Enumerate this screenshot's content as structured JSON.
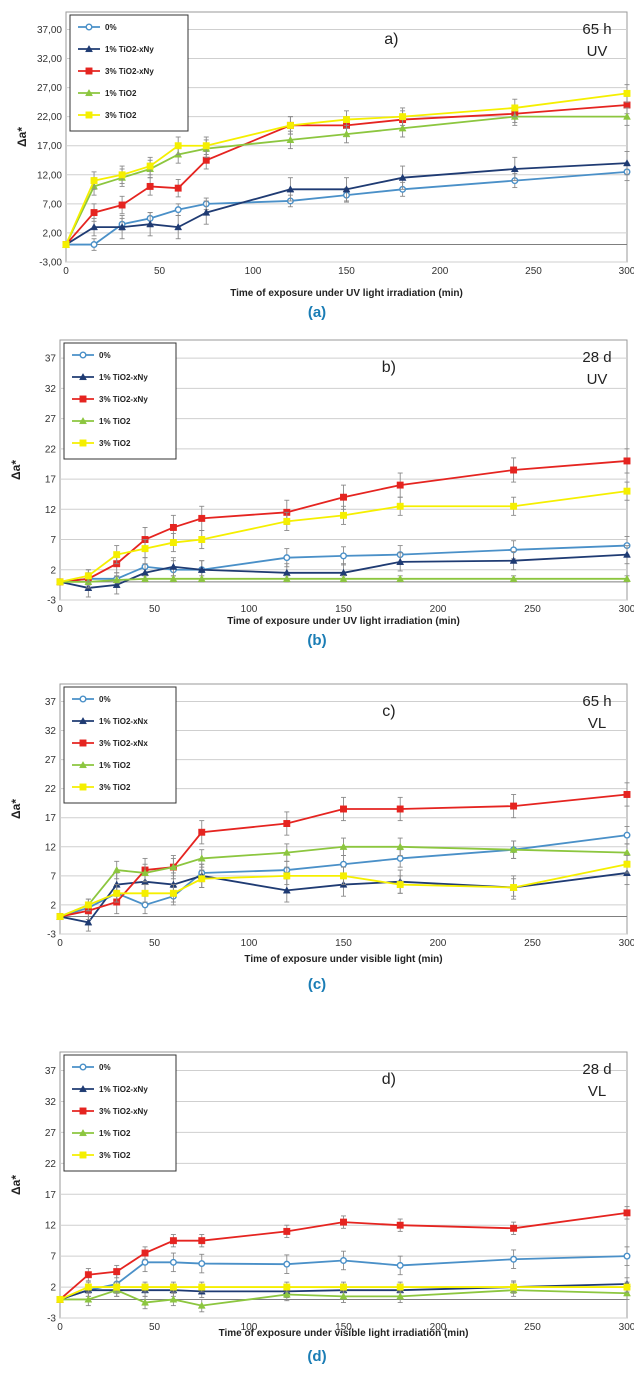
{
  "chart_data": [
    {
      "type": "line",
      "panel_label": "a)",
      "corner_line1": "65 h",
      "corner_line2": "UV",
      "caption": "(a)",
      "xlabel": "Time of exposure under UV light irradiation (min)",
      "ylabel": "Δa*",
      "xlim": [
        0,
        300
      ],
      "ylim": [
        -3,
        40
      ],
      "yticks": [
        "-3,00",
        "2,00",
        "7,00",
        "12,00",
        "17,00",
        "22,00",
        "27,00",
        "32,00",
        "37,00"
      ],
      "ytick_values": [
        -3,
        2,
        7,
        12,
        17,
        22,
        27,
        32,
        37
      ],
      "xticks": [
        "0",
        "50",
        "100",
        "150",
        "200",
        "250",
        "300"
      ],
      "grid": true,
      "legend_position": "top-left",
      "series": [
        {
          "name": "0%",
          "color": "#4a90c8",
          "marker": "circle-open",
          "x": [
            0,
            15,
            30,
            45,
            60,
            75,
            120,
            150,
            180,
            240,
            300
          ],
          "y": [
            0,
            0,
            3.5,
            4.5,
            6,
            7,
            7.5,
            8.5,
            9.5,
            11,
            12.5
          ],
          "err": [
            0,
            1,
            1,
            1,
            1,
            1,
            1,
            1.2,
            1.2,
            1.2,
            1.5
          ]
        },
        {
          "name": "1% TiO2-xNy",
          "color": "#1f3b73",
          "marker": "triangle",
          "x": [
            0,
            15,
            30,
            45,
            60,
            75,
            120,
            150,
            180,
            240,
            300
          ],
          "y": [
            0,
            3,
            3,
            3.5,
            3,
            5.5,
            9.5,
            9.5,
            11.5,
            13,
            14
          ],
          "err": [
            0,
            1.5,
            2,
            2,
            2,
            2,
            2,
            2,
            2,
            2,
            2
          ]
        },
        {
          "name": "3% TiO2-xNy",
          "color": "#e52420",
          "marker": "square",
          "x": [
            0,
            15,
            30,
            45,
            60,
            75,
            120,
            150,
            180,
            240,
            300
          ],
          "y": [
            0,
            5.5,
            6.8,
            10,
            9.7,
            14.5,
            20.5,
            20.5,
            21.5,
            22.5,
            24
          ],
          "err": [
            0,
            1.5,
            1.5,
            1.5,
            1.5,
            1.5,
            1.5,
            1.5,
            1.5,
            1.5,
            1.5
          ]
        },
        {
          "name": "1% TiO2",
          "color": "#8cc63f",
          "marker": "triangle",
          "x": [
            0,
            15,
            30,
            45,
            60,
            75,
            120,
            150,
            180,
            240,
            300
          ],
          "y": [
            0,
            10,
            11.5,
            13,
            15.5,
            16.5,
            18,
            19,
            20,
            22,
            22
          ],
          "err": [
            0,
            1.5,
            1.5,
            1.5,
            1.5,
            1.5,
            1.5,
            1.5,
            1.5,
            1.5,
            1.5
          ]
        },
        {
          "name": "3% TiO2",
          "color": "#f5ef00",
          "marker": "square",
          "x": [
            0,
            15,
            30,
            45,
            60,
            75,
            120,
            150,
            180,
            240,
            300
          ],
          "y": [
            0,
            11,
            12,
            13.5,
            17,
            17,
            20.5,
            21.5,
            22,
            23.5,
            26
          ],
          "err": [
            0,
            1.5,
            1.5,
            1.5,
            1.5,
            1.5,
            1.5,
            1.5,
            1.5,
            1.5,
            1.5
          ]
        }
      ]
    },
    {
      "type": "line",
      "panel_label": "b)",
      "corner_line1": "28 d",
      "corner_line2": "UV",
      "caption": "(b)",
      "xlabel": "Time of exposure under UV light irradiation (min)",
      "ylabel": "Δa*",
      "xlim": [
        0,
        300
      ],
      "ylim": [
        -3,
        40
      ],
      "yticks": [
        "-3",
        "2",
        "7",
        "12",
        "17",
        "22",
        "27",
        "32",
        "37"
      ],
      "ytick_values": [
        -3,
        2,
        7,
        12,
        17,
        22,
        27,
        32,
        37
      ],
      "xticks": [
        "0",
        "50",
        "100",
        "150",
        "200",
        "250",
        "300"
      ],
      "grid": true,
      "legend_position": "top-left",
      "series": [
        {
          "name": "0%",
          "color": "#4a90c8",
          "marker": "circle-open",
          "x": [
            0,
            15,
            30,
            45,
            60,
            75,
            120,
            150,
            180,
            240,
            300
          ],
          "y": [
            0,
            0.5,
            0.5,
            2.5,
            2,
            2,
            4,
            4.3,
            4.5,
            5.3,
            6
          ],
          "err": [
            0,
            1,
            1,
            1.5,
            1.5,
            1.5,
            1.5,
            1.5,
            1.5,
            1.5,
            1.5
          ]
        },
        {
          "name": "1% TiO2-xNy",
          "color": "#1f3b73",
          "marker": "triangle",
          "x": [
            0,
            15,
            30,
            45,
            60,
            75,
            120,
            150,
            180,
            240,
            300
          ],
          "y": [
            0,
            -1,
            -0.5,
            1.5,
            2.5,
            2,
            1.5,
            1.5,
            3.3,
            3.5,
            4.5
          ],
          "err": [
            0,
            1.5,
            1.5,
            1.5,
            1.5,
            1.5,
            1.5,
            1.5,
            1.5,
            1.5,
            1.5
          ]
        },
        {
          "name": "3% TiO2-xNy",
          "color": "#e52420",
          "marker": "square",
          "x": [
            0,
            15,
            30,
            45,
            60,
            75,
            120,
            150,
            180,
            240,
            300
          ],
          "y": [
            0,
            0.5,
            3,
            7,
            9,
            10.5,
            11.5,
            14,
            16,
            18.5,
            20
          ],
          "err": [
            0,
            1.5,
            1.5,
            2,
            2,
            2,
            2,
            2,
            2,
            2,
            2
          ]
        },
        {
          "name": "1% TiO2",
          "color": "#8cc63f",
          "marker": "triangle",
          "x": [
            0,
            15,
            30,
            45,
            60,
            75,
            120,
            150,
            180,
            240,
            300
          ],
          "y": [
            0,
            0,
            0.3,
            0.5,
            0.5,
            0.5,
            0.5,
            0.5,
            0.5,
            0.5,
            0.5
          ],
          "err": [
            0,
            0.5,
            0.5,
            0.5,
            0.5,
            0.5,
            0.5,
            0.5,
            0.5,
            0.5,
            0.5
          ]
        },
        {
          "name": "3% TiO2",
          "color": "#f5ef00",
          "marker": "square",
          "x": [
            0,
            15,
            30,
            45,
            60,
            75,
            120,
            150,
            180,
            240,
            300
          ],
          "y": [
            0,
            1,
            4.5,
            5.5,
            6.5,
            7,
            10,
            11,
            12.5,
            12.5,
            15
          ],
          "err": [
            0,
            1,
            1.5,
            1.5,
            1.5,
            1.5,
            1.5,
            1.5,
            1.5,
            1.5,
            1.5
          ]
        }
      ]
    },
    {
      "type": "line",
      "panel_label": "c)",
      "corner_line1": "65 h",
      "corner_line2": "VL",
      "caption": "(c)",
      "xlabel": "Time of exposure under visible light (min)",
      "ylabel": "Δa*",
      "xlim": [
        0,
        300
      ],
      "ylim": [
        -3,
        40
      ],
      "yticks": [
        "-3",
        "2",
        "7",
        "12",
        "17",
        "22",
        "27",
        "32",
        "37"
      ],
      "ytick_values": [
        -3,
        2,
        7,
        12,
        17,
        22,
        27,
        32,
        37
      ],
      "xticks": [
        "0",
        "50",
        "100",
        "150",
        "200",
        "250",
        "300"
      ],
      "grid": true,
      "legend_position": "top-left",
      "series": [
        {
          "name": "0%",
          "color": "#4a90c8",
          "marker": "circle-open",
          "x": [
            0,
            15,
            30,
            45,
            60,
            75,
            120,
            150,
            180,
            240,
            300
          ],
          "y": [
            0,
            1.5,
            4,
            2,
            3.5,
            7.5,
            8,
            9,
            10,
            11.5,
            14
          ],
          "err": [
            0,
            1,
            1.5,
            1.5,
            1.5,
            1.5,
            1.5,
            1.5,
            1.5,
            1.5,
            1.5
          ]
        },
        {
          "name": "1% TiO2-xNx",
          "color": "#1f3b73",
          "marker": "triangle",
          "x": [
            0,
            15,
            30,
            45,
            60,
            75,
            120,
            150,
            180,
            240,
            300
          ],
          "y": [
            0,
            -1,
            5.5,
            6,
            5.5,
            7,
            4.5,
            5.5,
            6,
            5,
            7.5
          ],
          "err": [
            0,
            1.5,
            2,
            2,
            2,
            2,
            2,
            2,
            2,
            2,
            2
          ]
        },
        {
          "name": "3% TiO2-xNx",
          "color": "#e52420",
          "marker": "square",
          "x": [
            0,
            15,
            30,
            45,
            60,
            75,
            120,
            150,
            180,
            240,
            300
          ],
          "y": [
            0,
            1,
            2.5,
            8,
            8.5,
            14.5,
            16,
            18.5,
            18.5,
            19,
            21
          ],
          "err": [
            0,
            1.5,
            2,
            2,
            2,
            2,
            2,
            2,
            2,
            2,
            2
          ]
        },
        {
          "name": "1% TiO2",
          "color": "#8cc63f",
          "marker": "triangle",
          "x": [
            0,
            15,
            30,
            45,
            60,
            75,
            120,
            150,
            180,
            240,
            300
          ],
          "y": [
            0,
            2,
            8,
            7.5,
            8.5,
            10,
            11,
            12,
            12,
            11.5,
            11
          ],
          "err": [
            0,
            1,
            1.5,
            1.5,
            1.5,
            1.5,
            1.5,
            1.5,
            1.5,
            1.5,
            1.5
          ]
        },
        {
          "name": "3% TiO2",
          "color": "#f5ef00",
          "marker": "square",
          "x": [
            0,
            15,
            30,
            45,
            60,
            75,
            120,
            150,
            180,
            240,
            300
          ],
          "y": [
            0,
            2,
            4,
            4,
            4,
            6.5,
            7,
            7,
            5.5,
            5,
            9
          ],
          "err": [
            0,
            1,
            1.5,
            1.5,
            1.5,
            1.5,
            1.5,
            1.5,
            1.5,
            1.5,
            1.5
          ]
        }
      ]
    },
    {
      "type": "line",
      "panel_label": "d)",
      "corner_line1": "28 d",
      "corner_line2": "VL",
      "caption": "(d)",
      "xlabel": "Time of exposure under visible light irradiation (min)",
      "ylabel": "Δa*",
      "xlim": [
        0,
        300
      ],
      "ylim": [
        -3,
        40
      ],
      "yticks": [
        "-3",
        "2",
        "7",
        "12",
        "17",
        "22",
        "27",
        "32",
        "37"
      ],
      "ytick_values": [
        -3,
        2,
        7,
        12,
        17,
        22,
        27,
        32,
        37
      ],
      "xticks": [
        "0",
        "50",
        "100",
        "150",
        "200",
        "250",
        "300"
      ],
      "grid": true,
      "legend_position": "top-left",
      "series": [
        {
          "name": "0%",
          "color": "#4a90c8",
          "marker": "circle-open",
          "x": [
            0,
            15,
            30,
            45,
            60,
            75,
            120,
            150,
            180,
            240,
            300
          ],
          "y": [
            0,
            1.5,
            2.5,
            6,
            6,
            5.8,
            5.7,
            6.3,
            5.5,
            6.5,
            7
          ],
          "err": [
            0,
            1,
            1.5,
            1.5,
            1.5,
            1.5,
            1.5,
            1.5,
            1.5,
            1.5,
            1.5
          ]
        },
        {
          "name": "1% TiO2-xNy",
          "color": "#1f3b73",
          "marker": "triangle",
          "x": [
            0,
            15,
            30,
            45,
            60,
            75,
            120,
            150,
            180,
            240,
            300
          ],
          "y": [
            0,
            1.5,
            1.5,
            1.5,
            1.5,
            1.3,
            1.3,
            1.5,
            1.5,
            2,
            2.5
          ],
          "err": [
            0,
            1,
            1,
            1,
            1,
            1,
            1,
            1,
            1,
            1,
            1
          ]
        },
        {
          "name": "3% TiO2-xNy",
          "color": "#e52420",
          "marker": "square",
          "x": [
            0,
            15,
            30,
            45,
            60,
            75,
            120,
            150,
            180,
            240,
            300
          ],
          "y": [
            0,
            4,
            4.5,
            7.5,
            9.5,
            9.5,
            11,
            12.5,
            12,
            11.5,
            14
          ],
          "err": [
            0,
            1,
            1,
            1,
            1,
            1,
            1,
            1,
            1,
            1,
            1
          ]
        },
        {
          "name": "1% TiO2",
          "color": "#8cc63f",
          "marker": "triangle",
          "x": [
            0,
            15,
            30,
            45,
            60,
            75,
            120,
            150,
            180,
            240,
            300
          ],
          "y": [
            0,
            0,
            1.5,
            -0.5,
            0,
            -1,
            0.8,
            0.5,
            0.5,
            1.5,
            1
          ],
          "err": [
            0,
            1,
            1,
            1,
            1,
            1,
            1,
            1,
            1,
            1,
            1
          ]
        },
        {
          "name": "3% TiO2",
          "color": "#f5ef00",
          "marker": "square",
          "x": [
            0,
            15,
            30,
            45,
            60,
            75,
            120,
            150,
            180,
            240,
            300
          ],
          "y": [
            0,
            2,
            2,
            2,
            2,
            2,
            2,
            2,
            2,
            2,
            2
          ],
          "err": [
            0,
            0.8,
            0.8,
            0.8,
            0.8,
            0.8,
            0.8,
            0.8,
            0.8,
            0.8,
            0.8
          ]
        }
      ]
    }
  ]
}
